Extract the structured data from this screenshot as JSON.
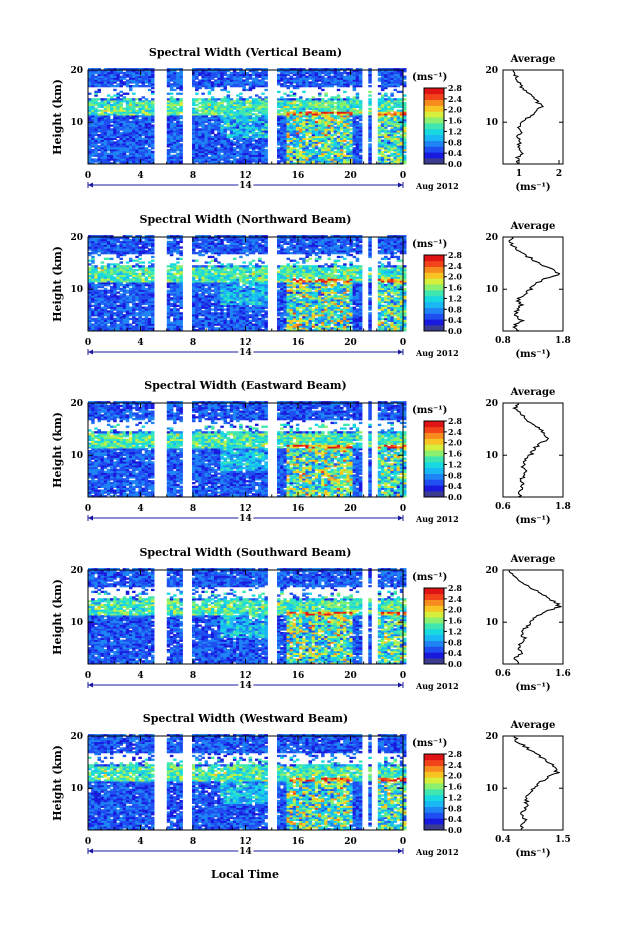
{
  "figure": {
    "xlabel": "Local Time",
    "date_label": "Aug 2012",
    "day_label": "14",
    "colorbar_unit": "(ms⁻¹)",
    "colorbar_ticks": [
      "0.0",
      "0.4",
      "0.8",
      "1.2",
      "1.6",
      "2.0",
      "2.4",
      "2.8"
    ],
    "colormap": [
      "#3b3b8f",
      "#1a1adf",
      "#1f4ff0",
      "#1f85f5",
      "#18b8f5",
      "#19d9e0",
      "#3fe6b0",
      "#8af06e",
      "#d6ee3c",
      "#f7c424",
      "#f78b1e",
      "#f2431a",
      "#e01414"
    ],
    "profile_title": "Average",
    "profile_unit": "(ms⁻¹)"
  },
  "chart_data": [
    {
      "type": "heatmap",
      "title": "Spectral Width (Vertical Beam)",
      "ylabel": "Height (km)",
      "xticks": [
        "0",
        "4",
        "8",
        "12",
        "16",
        "20",
        "0"
      ],
      "yticks": [
        "10",
        "20"
      ],
      "xlim": [
        0,
        24
      ],
      "ylim": [
        2,
        20
      ],
      "gaps": [
        [
          5.2,
          5.8
        ],
        [
          7.3,
          7.7
        ],
        [
          13.8,
          14.3
        ],
        [
          21.0,
          21.2
        ],
        [
          21.8,
          22.0
        ]
      ],
      "value_range": [
        0,
        2.8
      ],
      "profile": {
        "xlim": [
          0.6,
          2.1
        ],
        "xticks": [
          "1",
          "2"
        ],
        "heights": [
          2,
          3,
          4,
          5,
          6,
          7,
          8,
          9,
          10,
          11,
          12,
          13,
          14,
          15,
          16,
          17,
          18,
          19,
          20
        ],
        "values": [
          1.0,
          0.95,
          1.05,
          1.0,
          1.0,
          0.98,
          1.05,
          1.02,
          1.1,
          1.25,
          1.4,
          1.55,
          1.45,
          1.3,
          1.2,
          1.05,
          0.95,
          0.9,
          0.85
        ]
      }
    },
    {
      "type": "heatmap",
      "title": "Spectral Width (Northward Beam)",
      "ylabel": "Height (km)",
      "xticks": [
        "0",
        "4",
        "8",
        "12",
        "16",
        "20",
        "0"
      ],
      "yticks": [
        "10",
        "20"
      ],
      "xlim": [
        0,
        24
      ],
      "ylim": [
        2,
        20
      ],
      "gaps": [
        [
          5.2,
          5.8
        ],
        [
          7.3,
          7.7
        ],
        [
          13.8,
          14.3
        ],
        [
          21.0,
          21.2
        ],
        [
          21.8,
          22.0
        ]
      ],
      "value_range": [
        0,
        2.8
      ],
      "profile": {
        "xlim": [
          0.8,
          1.8
        ],
        "xticks": [
          "0.8",
          "1.8"
        ],
        "heights": [
          2,
          3,
          4,
          5,
          6,
          7,
          8,
          9,
          10,
          11,
          12,
          13,
          14,
          15,
          16,
          17,
          18,
          19,
          20
        ],
        "values": [
          1.05,
          1.0,
          1.1,
          1.0,
          1.05,
          1.1,
          1.05,
          1.15,
          1.25,
          1.35,
          1.5,
          1.75,
          1.6,
          1.4,
          1.25,
          1.1,
          1.0,
          0.9,
          0.95
        ]
      }
    },
    {
      "type": "heatmap",
      "title": "Spectral Width (Eastward Beam)",
      "ylabel": "Height (km)",
      "xticks": [
        "0",
        "4",
        "8",
        "12",
        "16",
        "20",
        "0"
      ],
      "yticks": [
        "10",
        "20"
      ],
      "xlim": [
        0,
        24
      ],
      "ylim": [
        2,
        20
      ],
      "gaps": [
        [
          5.2,
          5.8
        ],
        [
          7.3,
          7.7
        ],
        [
          13.8,
          14.3
        ],
        [
          21.0,
          21.2
        ],
        [
          21.8,
          22.0
        ]
      ],
      "value_range": [
        0,
        2.8
      ],
      "profile": {
        "xlim": [
          0.6,
          1.8
        ],
        "xticks": [
          "0.6",
          "1.8"
        ],
        "heights": [
          2,
          3,
          4,
          5,
          6,
          7,
          8,
          9,
          10,
          11,
          12,
          13,
          14,
          15,
          16,
          17,
          18,
          19,
          20
        ],
        "values": [
          0.95,
          0.9,
          1.0,
          0.95,
          1.0,
          1.05,
          1.0,
          1.05,
          1.15,
          1.2,
          1.3,
          1.5,
          1.45,
          1.35,
          1.2,
          1.05,
          0.95,
          0.85,
          0.9
        ]
      }
    },
    {
      "type": "heatmap",
      "title": "Spectral Width (Southward Beam)",
      "ylabel": "Height (km)",
      "xticks": [
        "0",
        "4",
        "8",
        "12",
        "16",
        "20",
        "0"
      ],
      "yticks": [
        "10",
        "20"
      ],
      "xlim": [
        0,
        24
      ],
      "ylim": [
        2,
        20
      ],
      "gaps": [
        [
          5.2,
          5.8
        ],
        [
          7.3,
          7.7
        ],
        [
          13.8,
          14.3
        ],
        [
          21.0,
          21.2
        ],
        [
          21.8,
          22.0
        ]
      ],
      "value_range": [
        0,
        2.8
      ],
      "profile": {
        "xlim": [
          0.6,
          1.6
        ],
        "xticks": [
          "0.6",
          "1.6"
        ],
        "heights": [
          2,
          3,
          4,
          5,
          6,
          7,
          8,
          9,
          10,
          11,
          12,
          13,
          14,
          15,
          16,
          17,
          18,
          19,
          20
        ],
        "values": [
          0.85,
          0.8,
          0.9,
          0.85,
          0.9,
          0.95,
          0.9,
          1.0,
          1.05,
          1.15,
          1.3,
          1.55,
          1.45,
          1.3,
          1.15,
          1.0,
          0.85,
          0.75,
          0.7
        ]
      }
    },
    {
      "type": "heatmap",
      "title": "Spectral Width (Westward Beam)",
      "ylabel": "Height (km)",
      "xticks": [
        "0",
        "4",
        "8",
        "12",
        "16",
        "20",
        "0"
      ],
      "yticks": [
        "10",
        "20"
      ],
      "xlim": [
        0,
        24
      ],
      "ylim": [
        2,
        20
      ],
      "gaps": [
        [
          5.2,
          5.8
        ],
        [
          7.3,
          7.7
        ],
        [
          13.8,
          14.3
        ],
        [
          21.0,
          21.2
        ],
        [
          21.8,
          22.0
        ]
      ],
      "value_range": [
        0,
        2.8
      ],
      "profile": {
        "xlim": [
          0.4,
          1.5
        ],
        "xticks": [
          "0.4",
          "1.5"
        ],
        "heights": [
          2,
          3,
          4,
          5,
          6,
          7,
          8,
          9,
          10,
          11,
          12,
          13,
          14,
          15,
          16,
          17,
          18,
          19,
          20
        ],
        "values": [
          0.75,
          0.7,
          0.8,
          0.75,
          0.8,
          0.85,
          0.8,
          0.9,
          0.95,
          1.05,
          1.2,
          1.4,
          1.35,
          1.25,
          1.1,
          0.95,
          0.8,
          0.65,
          0.6
        ]
      }
    }
  ]
}
